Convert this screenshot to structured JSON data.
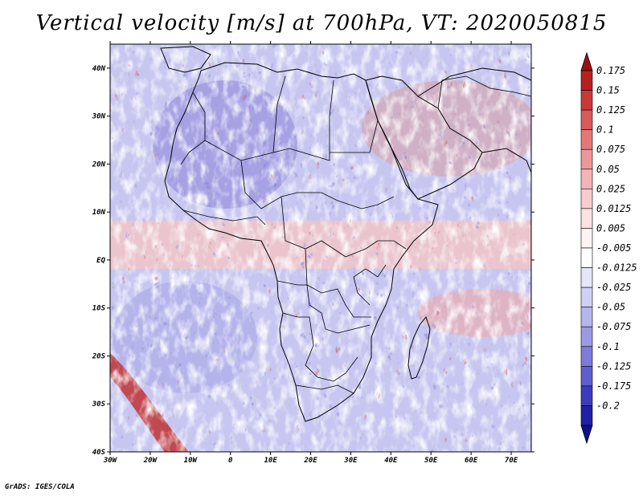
{
  "title": "Vertical velocity [m/s] at 700hPa, VT: 2020050815",
  "credit": "GrADS: IGES/COLA",
  "map": {
    "lon_range": [
      -30,
      75
    ],
    "lat_range": [
      -40,
      45
    ],
    "lat_ticks": [
      {
        "value": 40,
        "label": "40N"
      },
      {
        "value": 30,
        "label": "30N"
      },
      {
        "value": 20,
        "label": "20N"
      },
      {
        "value": 10,
        "label": "10N"
      },
      {
        "value": 0,
        "label": "EQ"
      },
      {
        "value": -10,
        "label": "10S"
      },
      {
        "value": -20,
        "label": "20S"
      },
      {
        "value": -30,
        "label": "30S"
      },
      {
        "value": -40,
        "label": "40S"
      }
    ],
    "lon_ticks": [
      {
        "value": -30,
        "label": "30W"
      },
      {
        "value": -20,
        "label": "20W"
      },
      {
        "value": -10,
        "label": "10W"
      },
      {
        "value": 0,
        "label": "0"
      },
      {
        "value": 10,
        "label": "10E"
      },
      {
        "value": 20,
        "label": "20E"
      },
      {
        "value": 30,
        "label": "30E"
      },
      {
        "value": 40,
        "label": "40E"
      },
      {
        "value": 50,
        "label": "50E"
      },
      {
        "value": 60,
        "label": "60E"
      },
      {
        "value": 70,
        "label": "70E"
      }
    ]
  },
  "colorbar": {
    "levels": [
      {
        "label": "0.175",
        "color": "#b82020"
      },
      {
        "label": "0.15",
        "color": "#cc3838"
      },
      {
        "label": "0.125",
        "color": "#da5a5a"
      },
      {
        "label": "0.1",
        "color": "#e47878"
      },
      {
        "label": "0.075",
        "color": "#ec9898"
      },
      {
        "label": "0.05",
        "color": "#f2b4b4"
      },
      {
        "label": "0.025",
        "color": "#f8cccc"
      },
      {
        "label": "0.0125",
        "color": "#fce2e2"
      },
      {
        "label": "0.005",
        "color": "#fff3f3"
      },
      {
        "label": "-0.005",
        "color": "#ffffff"
      },
      {
        "label": "-0.0125",
        "color": "#e6e6fa"
      },
      {
        "label": "-0.025",
        "color": "#d0d0f6"
      },
      {
        "label": "-0.05",
        "color": "#b6b6ee"
      },
      {
        "label": "-0.075",
        "color": "#9a9ae6"
      },
      {
        "label": "-0.1",
        "color": "#7c7cdc"
      },
      {
        "label": "-0.125",
        "color": "#5e5ed0"
      },
      {
        "label": "-0.175",
        "color": "#3c3cbe"
      },
      {
        "label": "-0.2",
        "color": "#2020a8"
      }
    ],
    "top_arrow_color": "#a01010",
    "bottom_arrow_color": "#10108c"
  }
}
